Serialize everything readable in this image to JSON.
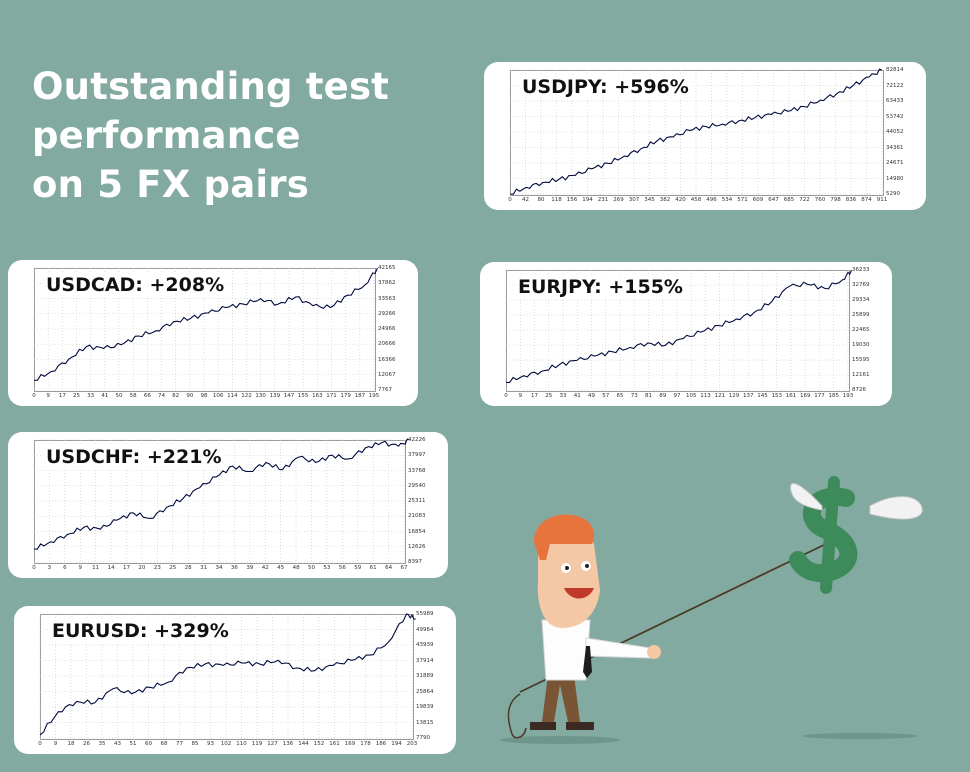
{
  "headline": [
    "Outstanding test",
    "performance",
    "on 5 FX pairs"
  ],
  "colors": {
    "background": "#83aaa1",
    "card": "#ffffff",
    "equity_line": "#000a3d",
    "grid": "#c8c8c8"
  },
  "chart_data": [
    {
      "type": "line",
      "label": "USDJPY: +596%",
      "ytick_labels": [
        "82814",
        "72122",
        "63433",
        "53742",
        "44052",
        "34361",
        "24671",
        "14980",
        "5290"
      ],
      "xtick_labels": [
        "0",
        "42",
        "80",
        "118",
        "156",
        "194",
        "231",
        "269",
        "307",
        "345",
        "382",
        "420",
        "458",
        "496",
        "534",
        "571",
        "609",
        "647",
        "685",
        "722",
        "760",
        "798",
        "836",
        "874",
        "911"
      ],
      "x": [
        0,
        40,
        80,
        120,
        160,
        200,
        240,
        280,
        320,
        360,
        400,
        440,
        480,
        520,
        560,
        600,
        640,
        680,
        720,
        760,
        800,
        840,
        880,
        911
      ],
      "values": [
        5290,
        9500,
        12500,
        14500,
        17000,
        21000,
        24500,
        29000,
        33500,
        38500,
        41000,
        45000,
        47500,
        49000,
        51000,
        53000,
        55000,
        57000,
        60000,
        64000,
        68000,
        73000,
        78500,
        82814
      ]
    },
    {
      "type": "line",
      "label": "USDCAD: +208%",
      "ytick_labels": [
        "42165",
        "37862",
        "33563",
        "29266",
        "24966",
        "20666",
        "16366",
        "12067",
        "7767"
      ],
      "xtick_labels": [
        "0",
        "9",
        "17",
        "25",
        "33",
        "41",
        "50",
        "58",
        "66",
        "74",
        "82",
        "90",
        "98",
        "106",
        "114",
        "122",
        "130",
        "139",
        "147",
        "155",
        "163",
        "171",
        "179",
        "187",
        "195"
      ],
      "x": [
        0,
        10,
        20,
        30,
        40,
        50,
        60,
        70,
        80,
        90,
        100,
        110,
        120,
        130,
        140,
        150,
        160,
        170,
        180,
        190,
        197
      ],
      "values": [
        10500,
        13000,
        16500,
        20000,
        19500,
        20500,
        23000,
        24500,
        27000,
        28000,
        29500,
        31000,
        32000,
        33500,
        32000,
        34000,
        31500,
        31000,
        34500,
        37500,
        42165
      ]
    },
    {
      "type": "line",
      "label": "EURJPY: +155%",
      "ytick_labels": [
        "36233",
        "32769",
        "29334",
        "25899",
        "22465",
        "19030",
        "15595",
        "12161",
        "8726"
      ],
      "xtick_labels": [
        "0",
        "9",
        "17",
        "25",
        "33",
        "41",
        "49",
        "57",
        "65",
        "73",
        "81",
        "89",
        "97",
        "105",
        "113",
        "121",
        "129",
        "137",
        "145",
        "153",
        "161",
        "169",
        "177",
        "185",
        "193"
      ],
      "x": [
        0,
        10,
        20,
        30,
        40,
        50,
        60,
        70,
        80,
        90,
        100,
        110,
        120,
        130,
        140,
        150,
        160,
        170,
        180,
        190,
        195
      ],
      "values": [
        10500,
        12000,
        13000,
        14500,
        15500,
        16500,
        17500,
        18500,
        19500,
        19000,
        20500,
        22000,
        23500,
        25000,
        26500,
        29000,
        32500,
        33000,
        32000,
        34000,
        36233
      ]
    },
    {
      "type": "line",
      "label": "USDCHF: +221%",
      "ytick_labels": [
        "42226",
        "37997",
        "33768",
        "29540",
        "25311",
        "21083",
        "16854",
        "12626",
        "8397"
      ],
      "xtick_labels": [
        "0",
        "3",
        "6",
        "9",
        "11",
        "14",
        "17",
        "20",
        "23",
        "25",
        "28",
        "31",
        "34",
        "36",
        "39",
        "42",
        "45",
        "48",
        "50",
        "53",
        "56",
        "59",
        "61",
        "64",
        "67"
      ],
      "x": [
        0,
        3,
        6,
        9,
        12,
        15,
        18,
        21,
        24,
        27,
        30,
        33,
        36,
        39,
        42,
        45,
        48,
        51,
        54,
        57,
        60,
        63,
        66,
        68
      ],
      "values": [
        12000,
        14000,
        16000,
        18000,
        17500,
        20000,
        22000,
        20500,
        23500,
        26000,
        29000,
        32000,
        35000,
        33500,
        36000,
        34000,
        37500,
        36000,
        38000,
        37000,
        40000,
        41500,
        40500,
        42226
      ]
    },
    {
      "type": "line",
      "label": "EURUSD: +329%",
      "ytick_labels": [
        "55989",
        "49964",
        "43939",
        "37914",
        "31889",
        "25864",
        "19839",
        "13815",
        "7790"
      ],
      "xtick_labels": [
        "0",
        "9",
        "18",
        "26",
        "35",
        "43",
        "51",
        "60",
        "68",
        "77",
        "85",
        "93",
        "102",
        "110",
        "119",
        "127",
        "136",
        "144",
        "152",
        "161",
        "169",
        "178",
        "186",
        "194",
        "203"
      ],
      "x": [
        0,
        10,
        20,
        30,
        40,
        50,
        60,
        70,
        80,
        90,
        100,
        110,
        120,
        130,
        140,
        150,
        160,
        170,
        180,
        190,
        200,
        205
      ],
      "values": [
        9000,
        18000,
        22000,
        21500,
        27000,
        25000,
        27500,
        29500,
        35000,
        36500,
        36000,
        37000,
        36500,
        38000,
        35000,
        34000,
        36000,
        38000,
        40000,
        45000,
        55989,
        54000
      ]
    }
  ]
}
